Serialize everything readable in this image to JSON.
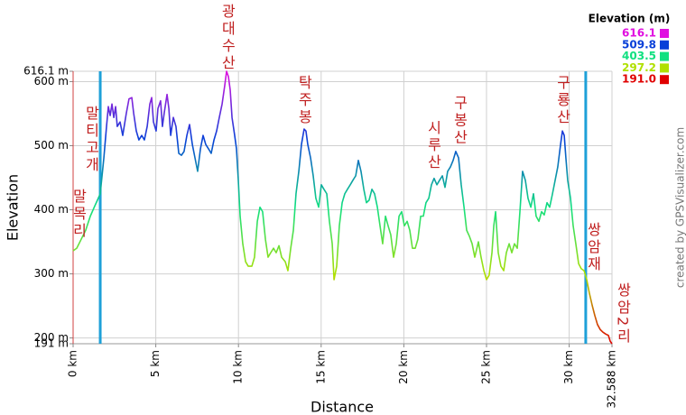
{
  "chart_data": {
    "type": "line",
    "x_label": "Distance",
    "y_label": "Elevation",
    "credit": "created by GPSVisualizer.com",
    "xlim": [
      0,
      32.588
    ],
    "ylim": [
      191,
      616.1
    ],
    "xticks": [
      {
        "value": 0,
        "label": "0 km"
      },
      {
        "value": 5,
        "label": "5 km"
      },
      {
        "value": 10,
        "label": "10 km"
      },
      {
        "value": 15,
        "label": "15 km"
      },
      {
        "value": 20,
        "label": "20 km"
      },
      {
        "value": 25,
        "label": "25 km"
      },
      {
        "value": 30,
        "label": "30 km"
      },
      {
        "value": 32.588,
        "label": "32.588 km"
      }
    ],
    "yticks": [
      {
        "value": 191,
        "label": "191 m"
      },
      {
        "value": 200,
        "label": "200 m"
      },
      {
        "value": 300,
        "label": "300 m"
      },
      {
        "value": 400,
        "label": "400 m"
      },
      {
        "value": 500,
        "label": "500 m"
      },
      {
        "value": 600,
        "label": "600 m"
      },
      {
        "value": 616.1,
        "label": "616.1 m"
      }
    ],
    "grid": true,
    "legend": {
      "title": "Elevation (m)",
      "items": [
        {
          "value": 616.1,
          "color": "#e010e0"
        },
        {
          "value": 509.8,
          "color": "#0840d8"
        },
        {
          "value": 403.5,
          "color": "#10e080"
        },
        {
          "value": 297.2,
          "color": "#b0e000"
        },
        {
          "value": 191,
          "label": "191.0",
          "color": "#e00000"
        }
      ]
    },
    "markers": {
      "color": "#1ea0d8",
      "x": [
        1.64,
        31.0
      ]
    },
    "annotation_color": "#c02020",
    "annotations": [
      {
        "text": "말티고개",
        "x": 1.09,
        "y": 456
      },
      {
        "text": "말목리",
        "x": 0.33,
        "y": 353
      },
      {
        "text": "광대수산",
        "x": 9.33,
        "y": 615
      },
      {
        "text": "탁주봉",
        "x": 13.97,
        "y": 530
      },
      {
        "text": "시루산",
        "x": 21.78,
        "y": 460
      },
      {
        "text": "구봉산",
        "x": 23.36,
        "y": 499
      },
      {
        "text": "구룡산",
        "x": 29.59,
        "y": 530
      },
      {
        "text": "쌍암재",
        "x": 31.44,
        "y": 301
      },
      {
        "text": "쌍암2리",
        "x": 33.24,
        "y": 188
      }
    ],
    "x": [
      0,
      0.22,
      0.49,
      0.76,
      1.04,
      1.31,
      1.47,
      1.64,
      1.75,
      1.86,
      2.02,
      2.13,
      2.24,
      2.35,
      2.46,
      2.57,
      2.67,
      2.84,
      3.0,
      3.22,
      3.38,
      3.55,
      3.66,
      3.82,
      3.98,
      4.15,
      4.31,
      4.48,
      4.64,
      4.75,
      4.86,
      5.02,
      5.13,
      5.29,
      5.4,
      5.51,
      5.68,
      5.79,
      5.9,
      6.06,
      6.22,
      6.39,
      6.55,
      6.71,
      6.88,
      7.04,
      7.21,
      7.37,
      7.53,
      7.7,
      7.86,
      8.02,
      8.19,
      8.35,
      8.52,
      8.68,
      8.84,
      9.01,
      9.17,
      9.28,
      9.39,
      9.5,
      9.61,
      9.77,
      9.88,
      9.99,
      10.1,
      10.26,
      10.43,
      10.59,
      10.81,
      10.97,
      11.14,
      11.3,
      11.46,
      11.63,
      11.79,
      11.95,
      12.12,
      12.28,
      12.45,
      12.61,
      12.83,
      12.99,
      13.16,
      13.32,
      13.48,
      13.65,
      13.81,
      13.97,
      14.08,
      14.19,
      14.36,
      14.52,
      14.68,
      14.85,
      15.01,
      15.17,
      15.34,
      15.5,
      15.67,
      15.78,
      15.94,
      16.1,
      16.27,
      16.43,
      16.59,
      16.76,
      16.92,
      17.09,
      17.25,
      17.41,
      17.58,
      17.74,
      17.9,
      18.07,
      18.23,
      18.4,
      18.56,
      18.72,
      18.89,
      19.05,
      19.21,
      19.38,
      19.54,
      19.71,
      19.87,
      20.03,
      20.2,
      20.36,
      20.52,
      20.69,
      20.85,
      21.02,
      21.18,
      21.34,
      21.51,
      21.67,
      21.83,
      22.0,
      22.16,
      22.33,
      22.49,
      22.65,
      22.82,
      22.98,
      23.14,
      23.31,
      23.47,
      23.64,
      23.8,
      23.96,
      24.13,
      24.29,
      24.51,
      24.67,
      24.84,
      25.0,
      25.16,
      25.33,
      25.44,
      25.55,
      25.71,
      25.87,
      26.04,
      26.2,
      26.37,
      26.53,
      26.69,
      26.86,
      27.02,
      27.18,
      27.35,
      27.51,
      27.68,
      27.84,
      28.0,
      28.17,
      28.33,
      28.49,
      28.66,
      28.82,
      28.99,
      29.15,
      29.31,
      29.48,
      29.59,
      29.7,
      29.8,
      29.91,
      30.08,
      30.24,
      30.4,
      30.57,
      30.73,
      30.9,
      31.06,
      31.22,
      31.39,
      31.55,
      31.71,
      31.88,
      32.04,
      32.21,
      32.37,
      32.48,
      32.588
    ],
    "values": [
      336,
      340,
      354,
      368,
      390,
      406,
      415,
      425,
      453,
      481,
      530,
      561,
      547,
      565,
      544,
      561,
      530,
      537,
      516,
      551,
      573,
      575,
      551,
      523,
      509,
      516,
      509,
      530,
      565,
      575,
      537,
      523,
      558,
      570,
      530,
      551,
      580,
      558,
      516,
      544,
      530,
      488,
      485,
      491,
      516,
      533,
      502,
      481,
      460,
      495,
      516,
      502,
      495,
      488,
      509,
      523,
      544,
      565,
      594,
      616.1,
      608,
      587,
      544,
      516,
      495,
      446,
      390,
      347,
      319,
      312,
      312,
      326,
      382,
      404,
      397,
      354,
      326,
      333,
      340,
      333,
      344,
      326,
      319,
      305,
      340,
      368,
      425,
      460,
      502,
      526,
      523,
      502,
      481,
      453,
      418,
      404,
      439,
      432,
      425,
      382,
      347,
      291,
      312,
      375,
      411,
      425,
      432,
      439,
      446,
      453,
      477,
      460,
      432,
      411,
      415,
      432,
      425,
      404,
      375,
      347,
      390,
      375,
      361,
      326,
      347,
      390,
      397,
      375,
      382,
      368,
      340,
      340,
      354,
      390,
      390,
      411,
      418,
      439,
      449,
      439,
      446,
      453,
      435,
      460,
      467,
      477,
      491,
      481,
      439,
      404,
      368,
      359,
      347,
      326,
      350,
      326,
      305,
      291,
      298,
      333,
      375,
      397,
      333,
      312,
      305,
      333,
      347,
      333,
      347,
      340,
      397,
      460,
      446,
      418,
      404,
      425,
      390,
      382,
      397,
      392,
      411,
      404,
      425,
      446,
      467,
      502,
      523,
      516,
      481,
      446,
      418,
      375,
      347,
      316,
      308,
      305,
      291,
      270,
      251,
      235,
      221,
      213,
      209,
      206,
      204,
      195,
      191
    ]
  }
}
